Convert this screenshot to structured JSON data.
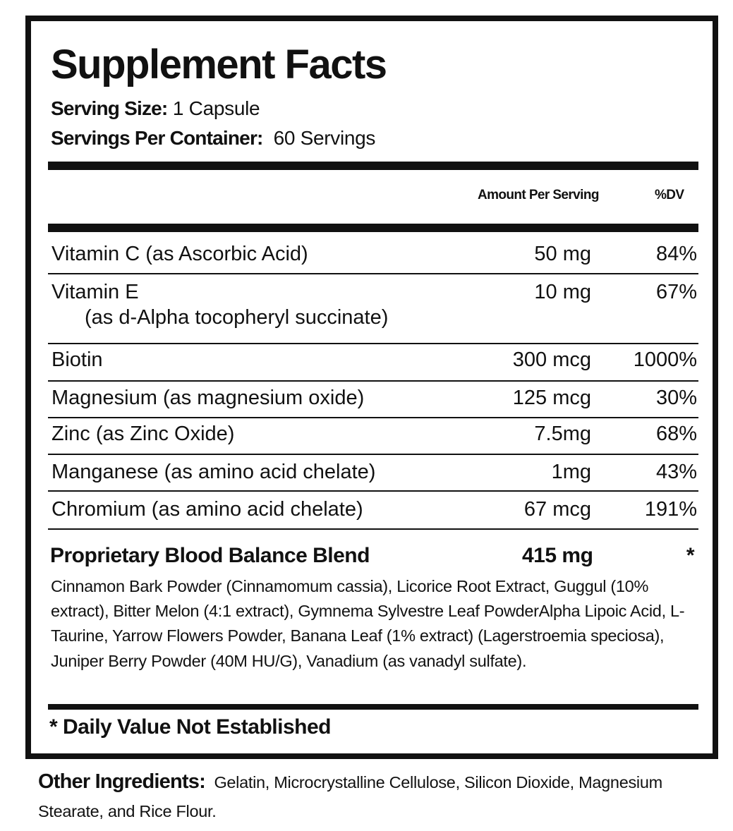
{
  "title": "Supplement Facts",
  "serving_size": {
    "label": "Serving Size:",
    "value": "1 Capsule"
  },
  "servings_per_container": {
    "label": "Servings Per Container:",
    "value": "60 Servings"
  },
  "columns": {
    "amount": "Amount Per Serving",
    "dv": "%DV"
  },
  "nutrients": [
    {
      "name": "Vitamin C (as Ascorbic Acid)",
      "amount": "50 mg",
      "dv": "84%"
    },
    {
      "name": "Vitamin E",
      "sub": "(as d-Alpha tocopheryl succinate)",
      "amount": "10 mg",
      "dv": "67%"
    },
    {
      "name": "Biotin",
      "amount": "300 mcg",
      "dv": "1000%"
    },
    {
      "name": "Magnesium (as magnesium oxide)",
      "amount": "125 mcg",
      "dv": "30%"
    },
    {
      "name": "Zinc (as Zinc Oxide)",
      "amount": "7.5mg",
      "dv": "68%"
    },
    {
      "name": "Manganese (as amino acid chelate)",
      "amount": "1mg",
      "dv": "43%"
    },
    {
      "name": "Chromium (as amino acid chelate)",
      "amount": "67 mcg",
      "dv": "191%"
    }
  ],
  "blend": {
    "name": "Proprietary Blood Balance Blend",
    "amount": "415 mg",
    "dv": "*",
    "ingredients": "Cinnamon Bark Powder (Cinnamomum cassia), Licorice Root Extract, Guggul (10% extract), Bitter Melon (4:1 extract), Gymnema Sylvestre Leaf PowderAlpha Lipoic Acid, L-Taurine, Yarrow Flowers Powder, Banana Leaf (1% extract) (Lagerstroemia speciosa), Juniper Berry Powder (40M HU/G), Vanadium (as vanadyl sulfate)."
  },
  "footnote": "* Daily Value Not Established",
  "other_ingredients": {
    "label": "Other Ingredients:",
    "value": "Gelatin, Microcrystalline Cellulose, Silicon Dioxide, Magnesium Stearate, and Rice Flour."
  }
}
